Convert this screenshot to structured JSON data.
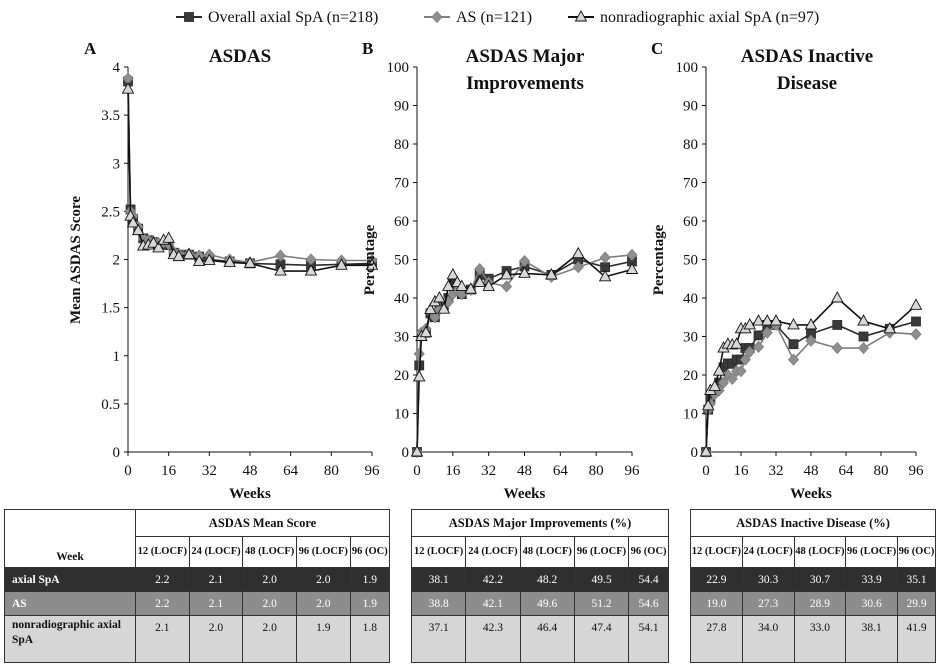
{
  "legend": [
    {
      "label": "Overall axial SpA (n=218)",
      "marker": "square",
      "color": "#2a2a2a"
    },
    {
      "label": "AS (n=121)",
      "marker": "diamond",
      "color": "#7d7d7d"
    },
    {
      "label": "nonradiographic axial SpA (n=97)",
      "marker": "triangle",
      "color": "#111111"
    }
  ],
  "chart_data": [
    {
      "type": "line",
      "panel": "A",
      "title": "ASDAS",
      "xlabel": "Weeks",
      "ylabel": "Mean ASDAS Score",
      "xlim": [
        0,
        96
      ],
      "ylim": [
        0,
        4
      ],
      "xticks": [
        "0",
        "16",
        "32",
        "48",
        "64",
        "80",
        "96"
      ],
      "yticks": [
        "0",
        "0.5",
        "1",
        "1.5",
        "2",
        "2.5",
        "3",
        "3.5",
        "4"
      ],
      "series": [
        {
          "name": "Overall axial SpA (n=218)",
          "x": [
            0,
            1,
            2,
            4,
            6,
            8,
            10,
            12,
            14,
            16,
            18,
            20,
            24,
            28,
            32,
            40,
            48,
            60,
            72,
            84,
            96
          ],
          "y": [
            3.85,
            2.52,
            2.42,
            2.32,
            2.22,
            2.2,
            2.18,
            2.15,
            2.16,
            2.15,
            2.07,
            2.05,
            2.05,
            2.03,
            2.0,
            1.98,
            1.96,
            1.95,
            1.94,
            1.95,
            1.96
          ]
        },
        {
          "name": "AS (n=121)",
          "x": [
            0,
            1,
            2,
            4,
            6,
            8,
            10,
            12,
            14,
            16,
            18,
            20,
            24,
            28,
            32,
            40,
            48,
            60,
            72,
            84,
            96
          ],
          "y": [
            3.88,
            2.5,
            2.45,
            2.34,
            2.22,
            2.2,
            2.19,
            2.17,
            2.18,
            2.16,
            2.08,
            2.06,
            2.06,
            2.04,
            2.05,
            2.0,
            1.97,
            2.04,
            2.0,
            1.99,
            1.99
          ]
        },
        {
          "name": "nonradiographic axial SpA (n=97)",
          "x": [
            0,
            1,
            2,
            4,
            6,
            8,
            10,
            12,
            14,
            16,
            18,
            20,
            24,
            28,
            32,
            40,
            48,
            60,
            72,
            84,
            96
          ],
          "y": [
            3.77,
            2.45,
            2.38,
            2.3,
            2.14,
            2.15,
            2.17,
            2.12,
            2.2,
            2.22,
            2.05,
            2.03,
            2.05,
            1.98,
            1.99,
            1.97,
            1.96,
            1.88,
            1.88,
            1.94,
            1.94
          ]
        }
      ]
    },
    {
      "type": "line",
      "panel": "B",
      "title": "ASDAS Major",
      "title2": "Improvements",
      "xlabel": "Weeks",
      "ylabel": "Percentage",
      "xlim": [
        0,
        96
      ],
      "ylim": [
        0,
        100
      ],
      "xticks": [
        "0",
        "16",
        "32",
        "48",
        "64",
        "80",
        "96"
      ],
      "yticks": [
        "0",
        "10",
        "20",
        "30",
        "40",
        "50",
        "60",
        "70",
        "80",
        "90",
        "100"
      ],
      "series": [
        {
          "name": "Overall axial SpA (n=218)",
          "x": [
            0,
            1,
            2,
            4,
            6,
            8,
            10,
            12,
            14,
            16,
            18,
            20,
            24,
            28,
            32,
            40,
            48,
            60,
            72,
            84,
            96
          ],
          "y": [
            0,
            22.5,
            30.5,
            31,
            36,
            35,
            38,
            38.1,
            40,
            44,
            43,
            41,
            42.2,
            46,
            45,
            47,
            48.2,
            46,
            50,
            48,
            49.5
          ]
        },
        {
          "name": "AS (n=121)",
          "x": [
            0,
            1,
            2,
            4,
            6,
            8,
            10,
            12,
            14,
            16,
            18,
            20,
            24,
            28,
            32,
            40,
            48,
            60,
            72,
            84,
            96
          ],
          "y": [
            0,
            25.5,
            31,
            32,
            36.5,
            35,
            37,
            38.8,
            39,
            41,
            42,
            41,
            42.1,
            47.5,
            44,
            43,
            49.6,
            45.5,
            48,
            50.5,
            51.2
          ]
        },
        {
          "name": "nonradiographic axial SpA (n=97)",
          "x": [
            0,
            1,
            2,
            4,
            6,
            8,
            10,
            12,
            14,
            16,
            18,
            20,
            24,
            28,
            32,
            40,
            48,
            60,
            72,
            84,
            96
          ],
          "y": [
            0,
            19.5,
            30,
            31,
            37,
            39,
            40,
            37.1,
            43,
            46,
            44,
            43,
            42.3,
            44,
            43,
            46,
            46.4,
            46,
            51.5,
            45.5,
            47.4
          ]
        }
      ]
    },
    {
      "type": "line",
      "panel": "C",
      "title": "ASDAS Inactive",
      "title2": "Disease",
      "xlabel": "Weeks",
      "ylabel": "Percentage",
      "xlim": [
        0,
        96
      ],
      "ylim": [
        0,
        100
      ],
      "xticks": [
        "0",
        "16",
        "32",
        "48",
        "64",
        "80",
        "96"
      ],
      "yticks": [
        "0",
        "10",
        "20",
        "30",
        "40",
        "50",
        "60",
        "70",
        "80",
        "90",
        "100"
      ],
      "series": [
        {
          "name": "Overall axial SpA (n=218)",
          "x": [
            0,
            1,
            2,
            4,
            6,
            8,
            10,
            12,
            14,
            16,
            18,
            20,
            24,
            28,
            32,
            40,
            48,
            60,
            72,
            84,
            96
          ],
          "y": [
            0,
            11,
            14,
            16,
            18,
            22,
            23,
            22.9,
            24,
            24,
            27,
            27,
            30.3,
            33,
            33,
            28,
            30.7,
            33,
            30,
            32,
            33.9
          ]
        },
        {
          "name": "AS (n=121)",
          "x": [
            0,
            1,
            2,
            4,
            6,
            8,
            10,
            12,
            14,
            16,
            18,
            20,
            24,
            28,
            32,
            40,
            48,
            60,
            72,
            84,
            96
          ],
          "y": [
            0,
            11,
            12.5,
            15,
            16,
            18,
            20,
            19,
            21,
            21,
            24,
            26,
            27.3,
            31,
            33,
            24,
            28.9,
            27,
            27,
            31,
            30.6
          ]
        },
        {
          "name": "nonradiographic axial SpA (n=97)",
          "x": [
            0,
            1,
            2,
            4,
            6,
            8,
            10,
            12,
            14,
            16,
            18,
            20,
            24,
            28,
            32,
            40,
            48,
            60,
            72,
            84,
            96
          ],
          "y": [
            0,
            12,
            16,
            17,
            21,
            27,
            28,
            27.8,
            28,
            32,
            32,
            33,
            34,
            34,
            34,
            33,
            33,
            40,
            34,
            32,
            38.1
          ]
        }
      ]
    },
    {
      "type": "table",
      "week_label": "Week",
      "col_headers": [
        "12 (LOCF)",
        "24 (LOCF)",
        "48 (LOCF)",
        "96 (LOCF)",
        "96 (OC)"
      ],
      "groups": [
        {
          "title": "ASDAS Mean Score",
          "rows": [
            [
              "2.2",
              "2.1",
              "2.0",
              "2.0",
              "1.9"
            ],
            [
              "2.2",
              "2.1",
              "2.0",
              "2.0",
              "1.9"
            ],
            [
              "2.1",
              "2.0",
              "2.0",
              "1.9",
              "1.8"
            ]
          ]
        },
        {
          "title": "ASDAS Major Improvements (%)",
          "rows": [
            [
              "38.1",
              "42.2",
              "48.2",
              "49.5",
              "54.4"
            ],
            [
              "38.8",
              "42.1",
              "49.6",
              "51.2",
              "54.6"
            ],
            [
              "37.1",
              "42.3",
              "46.4",
              "47.4",
              "54.1"
            ]
          ]
        },
        {
          "title": "ASDAS Inactive Disease (%)",
          "rows": [
            [
              "22.9",
              "30.3",
              "30.7",
              "33.9",
              "35.1"
            ],
            [
              "19.0",
              "27.3",
              "28.9",
              "30.6",
              "29.9"
            ],
            [
              "27.8",
              "34.0",
              "33.0",
              "38.1",
              "41.9"
            ]
          ]
        }
      ],
      "row_labels": [
        "axial SpA",
        "AS",
        "nonradiographic axial SpA"
      ]
    }
  ]
}
